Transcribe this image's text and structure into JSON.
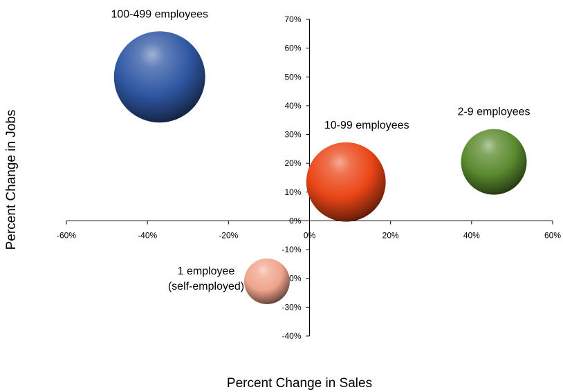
{
  "chart_data": {
    "type": "bubble",
    "xlabel": "Percent Change in Sales",
    "ylabel": "Percent Change in Jobs",
    "xlim": [
      -60,
      60
    ],
    "ylim": [
      -40,
      70
    ],
    "x_ticks": [
      "-60%",
      "-40%",
      "-20%",
      "0%",
      "20%",
      "40%",
      "60%"
    ],
    "y_ticks": [
      "70%",
      "60%",
      "50%",
      "40%",
      "30%",
      "20%",
      "10%",
      "0%",
      "-10%",
      "-20%",
      "-30%",
      "-40%"
    ],
    "grid": false,
    "legend": "none",
    "series": [
      {
        "label": "100-499 employees",
        "label_lines": [
          "100-499 employees"
        ],
        "x": -37,
        "y": 50,
        "size": 1.0,
        "color": "#2f57a3",
        "label_pos": "above"
      },
      {
        "label": "10-99 employees",
        "label_lines": [
          "10-99 employees"
        ],
        "x": 9,
        "y": 13.5,
        "size": 0.87,
        "color": "#ea4516",
        "label_pos": "above-right"
      },
      {
        "label": "2-9 employees",
        "label_lines": [
          "2-9 employees"
        ],
        "x": 45.5,
        "y": 20.5,
        "size": 0.72,
        "color": "#5a8a2e",
        "label_pos": "above"
      },
      {
        "label": "1 employee (self-employed)",
        "label_lines": [
          "1 employee",
          "(self-employed)"
        ],
        "x": -10.5,
        "y": -21,
        "size": 0.5,
        "color": "#f0a48c",
        "label_pos": "left"
      }
    ]
  }
}
